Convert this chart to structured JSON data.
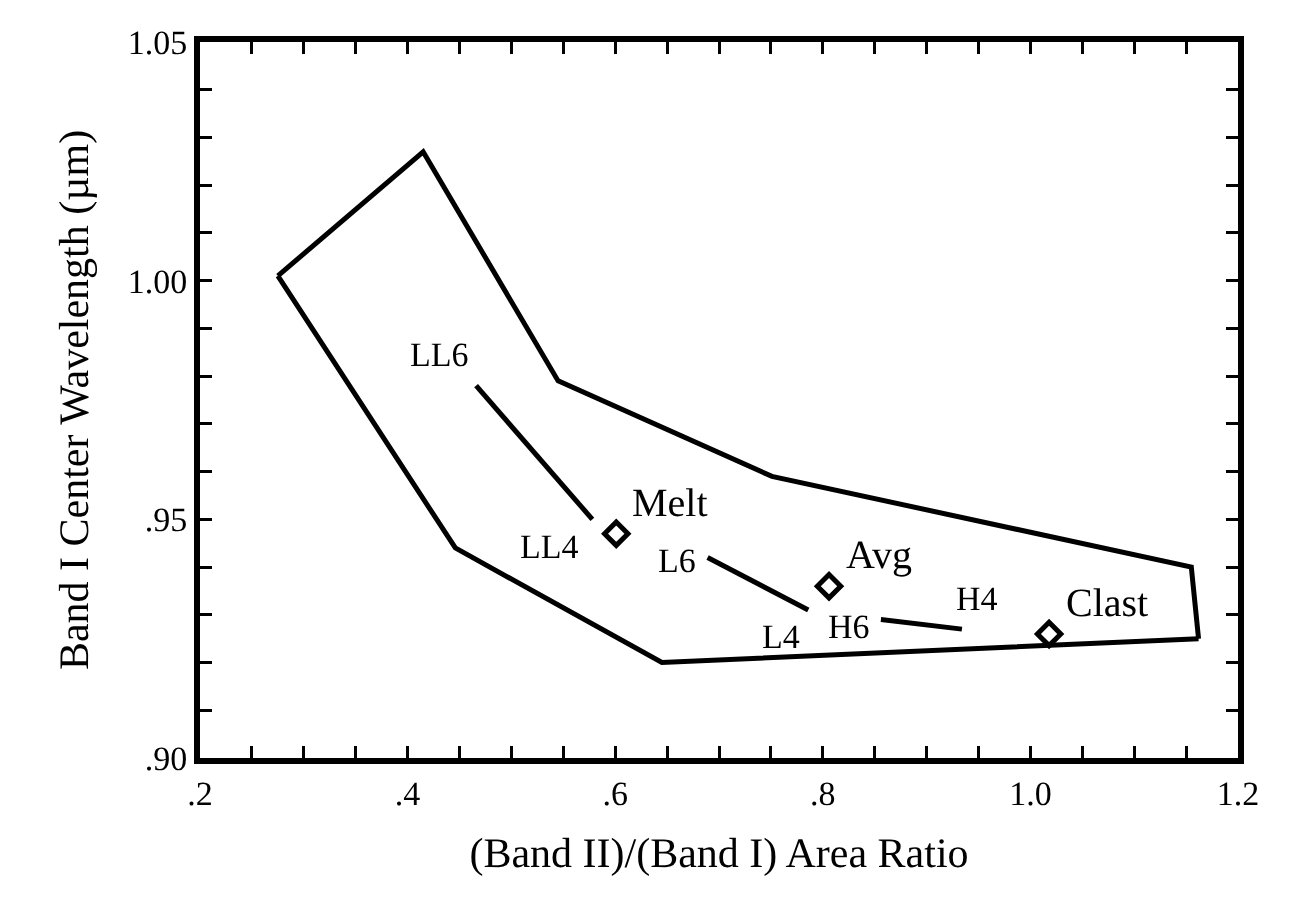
{
  "chart_data": {
    "type": "line",
    "xlabel": "(Band II)/(Band I) Area Ratio",
    "ylabel": "Band I Center Wavelength (µm)",
    "xlim": [
      0.2,
      1.2
    ],
    "ylim": [
      0.9,
      1.05
    ],
    "xticks": [
      {
        "value": 0.2,
        "label": ".2"
      },
      {
        "value": 0.25,
        "label": null
      },
      {
        "value": 0.3,
        "label": null
      },
      {
        "value": 0.35,
        "label": null
      },
      {
        "value": 0.4,
        "label": ".4"
      },
      {
        "value": 0.45,
        "label": null
      },
      {
        "value": 0.5,
        "label": null
      },
      {
        "value": 0.55,
        "label": null
      },
      {
        "value": 0.6,
        "label": ".6"
      },
      {
        "value": 0.65,
        "label": null
      },
      {
        "value": 0.7,
        "label": null
      },
      {
        "value": 0.75,
        "label": null
      },
      {
        "value": 0.8,
        "label": ".8"
      },
      {
        "value": 0.85,
        "label": null
      },
      {
        "value": 0.9,
        "label": null
      },
      {
        "value": 0.95,
        "label": null
      },
      {
        "value": 1.0,
        "label": "1.0"
      },
      {
        "value": 1.05,
        "label": null
      },
      {
        "value": 1.1,
        "label": null
      },
      {
        "value": 1.15,
        "label": null
      },
      {
        "value": 1.2,
        "label": "1.2"
      }
    ],
    "yticks": [
      {
        "value": 0.9,
        "label": ".90"
      },
      {
        "value": 0.91,
        "label": null
      },
      {
        "value": 0.92,
        "label": null
      },
      {
        "value": 0.93,
        "label": null
      },
      {
        "value": 0.94,
        "label": null
      },
      {
        "value": 0.95,
        "label": ".95"
      },
      {
        "value": 0.96,
        "label": null
      },
      {
        "value": 0.97,
        "label": null
      },
      {
        "value": 0.98,
        "label": null
      },
      {
        "value": 0.99,
        "label": null
      },
      {
        "value": 1.0,
        "label": "1.00"
      },
      {
        "value": 1.01,
        "label": null
      },
      {
        "value": 1.02,
        "label": null
      },
      {
        "value": 1.03,
        "label": null
      },
      {
        "value": 1.04,
        "label": null
      },
      {
        "value": 1.05,
        "label": "1.05"
      }
    ],
    "grid": false,
    "line_style": "solid",
    "series": [
      {
        "color": "#000000",
        "marker": "none",
        "x": [
          0.466,
          0.578,
          null,
          0.689,
          0.786,
          null,
          0.856,
          0.934
        ],
        "values": [
          0.978,
          0.95,
          null,
          0.942,
          0.931,
          null,
          0.929,
          0.927
        ]
      },
      {
        "color": "#000000",
        "marker": "none",
        "x": [
          0.275,
          0.415,
          0.545,
          0.751,
          1.155,
          1.162
        ],
        "values": [
          1.001,
          1.027,
          0.979,
          0.959,
          0.94,
          0.925
        ]
      },
      {
        "color": "#000000",
        "marker": "none",
        "x": [
          0.275,
          0.446,
          0.645,
          1.162
        ],
        "values": [
          1.001,
          0.944,
          0.92,
          0.925
        ]
      },
      {
        "type": "scatter",
        "color": "#000000",
        "marker": "diamond",
        "x": [
          0.601,
          0.806,
          1.018
        ],
        "values": [
          0.947,
          0.936,
          0.926
        ]
      }
    ],
    "annotations": [
      {
        "text": "LL6",
        "x": 0.466,
        "y": 0.978
      },
      {
        "text": "LL4",
        "x": 0.578,
        "y": 0.95
      },
      {
        "text": "Melt",
        "x": 0.601,
        "y": 0.947
      },
      {
        "text": "L6",
        "x": 0.689,
        "y": 0.942
      },
      {
        "text": "Avg",
        "x": 0.806,
        "y": 0.936
      },
      {
        "text": "L4",
        "x": 0.786,
        "y": 0.931
      },
      {
        "text": "H6",
        "x": 0.856,
        "y": 0.929
      },
      {
        "text": "H4",
        "x": 0.934,
        "y": 0.927
      },
      {
        "text": "Clast",
        "x": 1.018,
        "y": 0.926
      }
    ]
  }
}
